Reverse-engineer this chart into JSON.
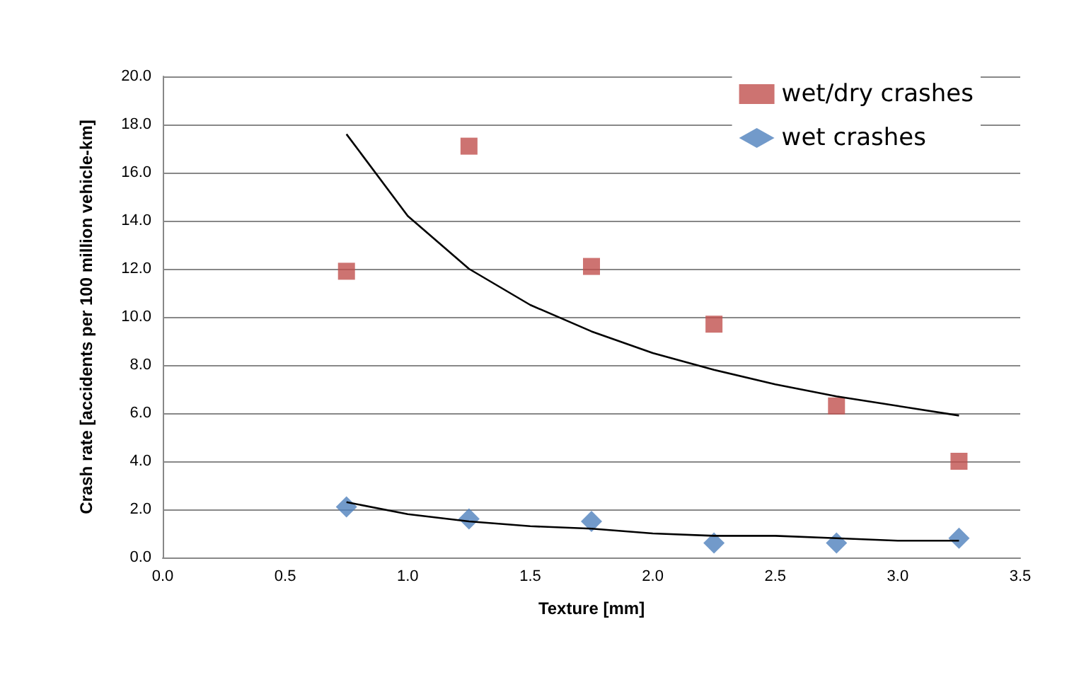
{
  "chart_data": {
    "type": "scatter",
    "xlabel": "Texture [mm]",
    "ylabel": "Crash rate [accidents per 100 million vehicle-km]",
    "x": [
      0.75,
      1.25,
      1.75,
      2.25,
      2.75,
      3.25
    ],
    "series": [
      {
        "name": "wet/dry crashes",
        "color": "#c0504d",
        "marker": "square",
        "values": [
          11.9,
          17.1,
          12.1,
          9.7,
          6.3,
          4.0
        ]
      },
      {
        "name": "wet crashes",
        "color": "#4f81bd",
        "marker": "diamond",
        "values": [
          2.1,
          1.6,
          1.5,
          0.6,
          0.6,
          0.8
        ]
      },
      {
        "type": "line",
        "color": "#000000",
        "marker": "none",
        "x": [
          0.75,
          1.0,
          1.25,
          1.5,
          1.75,
          2.0,
          2.25,
          2.5,
          2.75,
          3.0,
          3.25
        ],
        "values": [
          17.6,
          14.2,
          12.0,
          10.5,
          9.4,
          8.5,
          7.8,
          7.2,
          6.7,
          6.3,
          5.9
        ]
      },
      {
        "type": "line",
        "color": "#000000",
        "marker": "none",
        "x": [
          0.75,
          1.0,
          1.25,
          1.5,
          1.75,
          2.0,
          2.25,
          2.5,
          2.75,
          3.0,
          3.25
        ],
        "values": [
          2.3,
          1.8,
          1.5,
          1.3,
          1.2,
          1.0,
          0.9,
          0.9,
          0.8,
          0.7,
          0.7
        ]
      }
    ],
    "xlim": [
      0,
      3.5
    ],
    "xticks": [
      {
        "value": 0,
        "label": "0.0"
      },
      {
        "value": 0.5,
        "label": "0.5"
      },
      {
        "value": 1,
        "label": "1.0"
      },
      {
        "value": 1.5,
        "label": "1.5"
      },
      {
        "value": 2,
        "label": "2.0"
      },
      {
        "value": 2.5,
        "label": "2.5"
      },
      {
        "value": 3,
        "label": "3.0"
      },
      {
        "value": 3.5,
        "label": "3.5"
      }
    ],
    "ylim": [
      0,
      20
    ],
    "yticks": [
      {
        "value": 0,
        "label": "0.0"
      },
      {
        "value": 2,
        "label": "2.0"
      },
      {
        "value": 4,
        "label": "4.0"
      },
      {
        "value": 6,
        "label": "6.0"
      },
      {
        "value": 8,
        "label": "8.0"
      },
      {
        "value": 10,
        "label": "10.0"
      },
      {
        "value": 12,
        "label": "12.0"
      },
      {
        "value": 14,
        "label": "14.0"
      },
      {
        "value": 16,
        "label": "16.0"
      },
      {
        "value": 18,
        "label": "18.0"
      },
      {
        "value": 20,
        "label": "20.0"
      }
    ],
    "grid": "y",
    "legend": "top right"
  }
}
